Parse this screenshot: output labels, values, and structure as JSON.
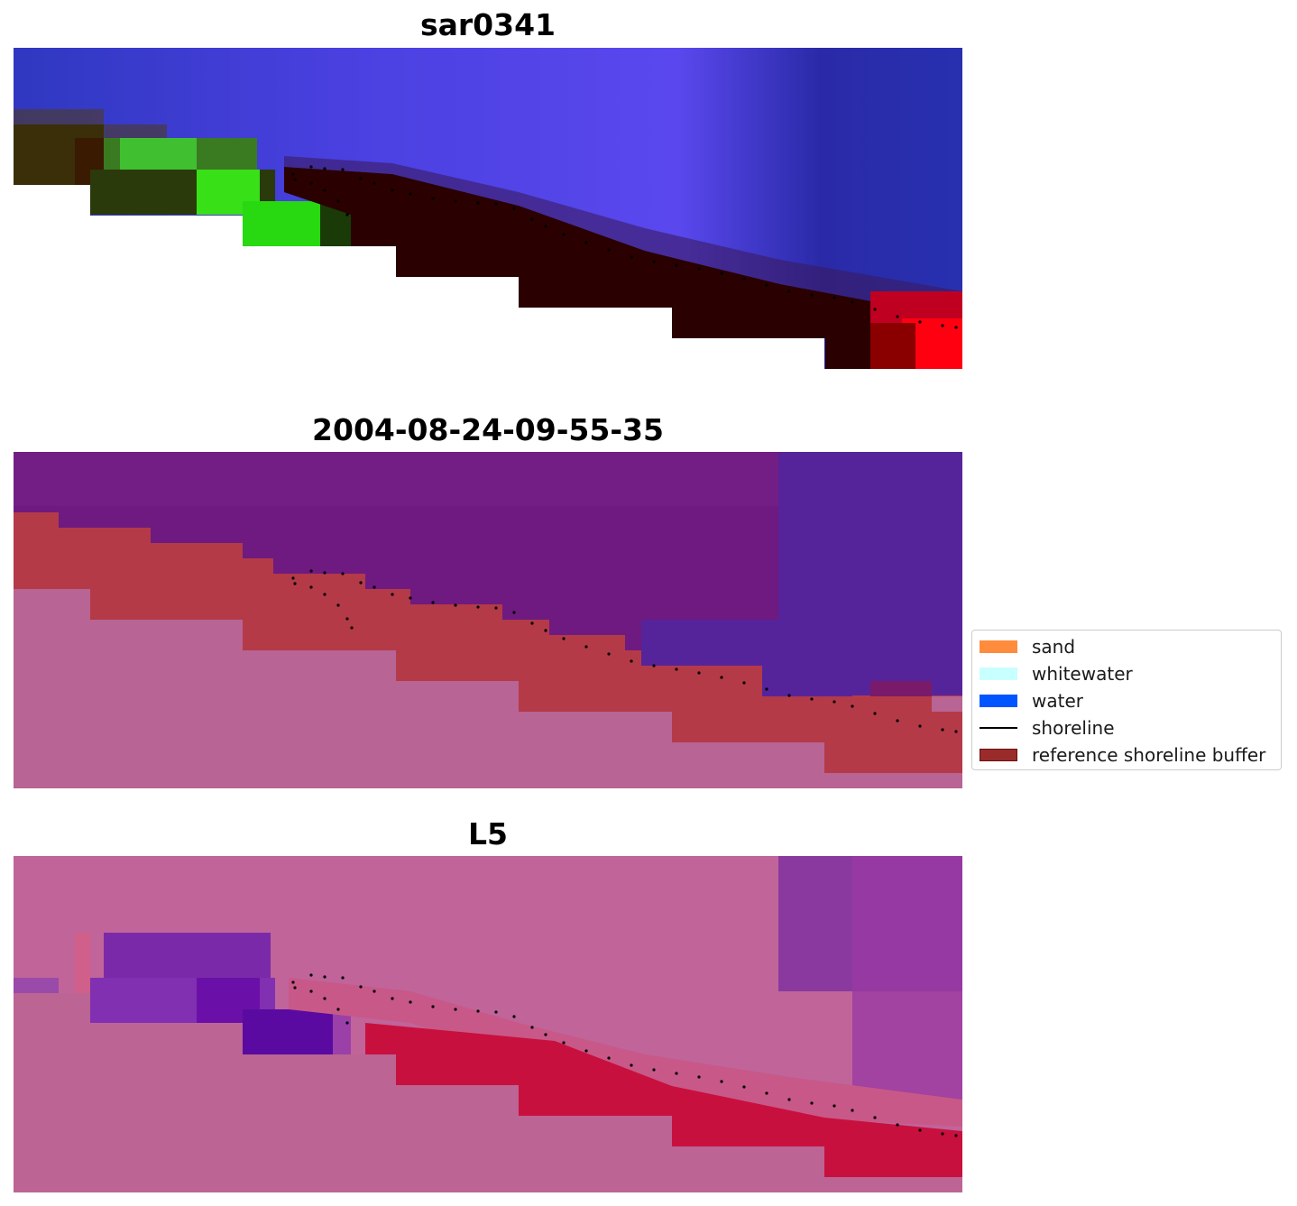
{
  "panels": [
    {
      "title": "sar0341"
    },
    {
      "title": "2004-08-24-09-55-35"
    },
    {
      "title": "L5"
    }
  ],
  "legend": {
    "items": [
      {
        "label": "sand",
        "kind": "patch",
        "color": "#ff8c3c"
      },
      {
        "label": "whitewater",
        "kind": "patch",
        "color": "#c8ffff"
      },
      {
        "label": "water",
        "kind": "patch",
        "color": "#0055ff"
      },
      {
        "label": "shoreline",
        "kind": "line",
        "color": "#000000"
      },
      {
        "label": "reference shoreline buffer",
        "kind": "patch",
        "color": "#9a2b2b",
        "edge": "#7a1a1a"
      }
    ]
  },
  "colors": {
    "panel1_water": "#3a3fd0",
    "panel1_land": "#2a0000",
    "panel1_veg": "#2ae010",
    "panel1_red": "#ff0010",
    "panel2_water": "#6a1a80",
    "panel2_buffer": "#b83a4a",
    "panel2_land": "#b86494",
    "panel3_water": "#c0649a",
    "panel3_red": "#c0003a",
    "panel3_purple": "#6a10a0"
  }
}
